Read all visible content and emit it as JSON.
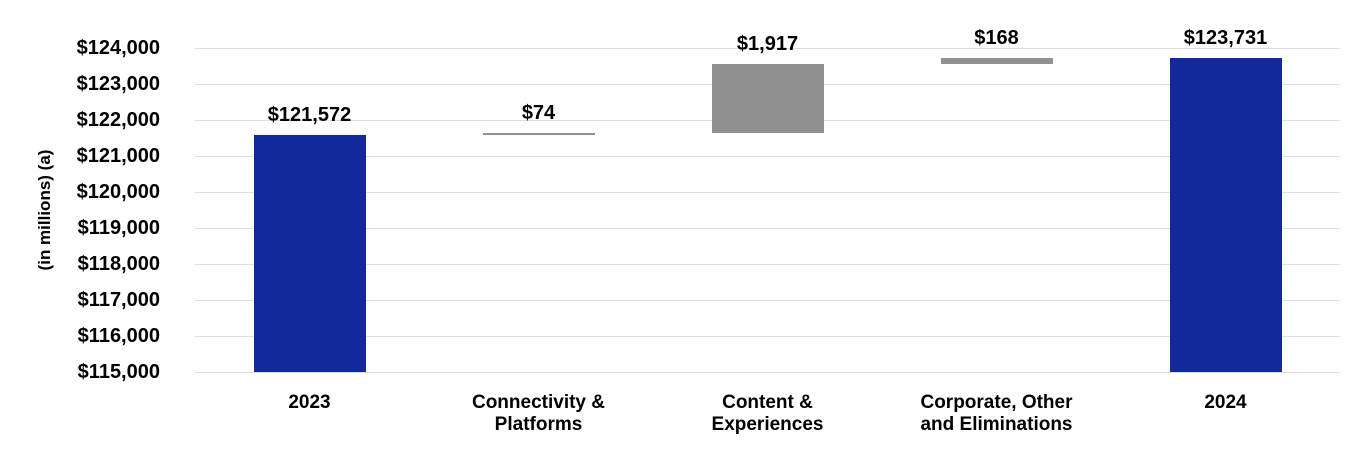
{
  "chart_data": {
    "type": "bar",
    "subtype": "waterfall",
    "title": "",
    "ylabel": "(in millions) (a)",
    "xlabel": "",
    "ylim": [
      115000,
      124000
    ],
    "ytick_step": 1000,
    "grid": true,
    "legend": false,
    "ytick_labels": [
      "$115,000",
      "$116,000",
      "$117,000",
      "$118,000",
      "$119,000",
      "$120,000",
      "$121,000",
      "$122,000",
      "$123,000",
      "$124,000"
    ],
    "categories": [
      [
        "2023"
      ],
      [
        "Connectivity &",
        "Platforms"
      ],
      [
        "Content &",
        "Experiences"
      ],
      [
        "Corporate, Other",
        "and Eliminations"
      ],
      [
        "2024"
      ]
    ],
    "bars": [
      {
        "name": "bar-2023",
        "label": "$121,572",
        "start": 115000,
        "end": 121572,
        "value": 121572,
        "color": "primary"
      },
      {
        "name": "bar-connectivity-and-platforms",
        "label": "$74",
        "start": 121572,
        "end": 121646,
        "value": 74,
        "color": "secondary"
      },
      {
        "name": "bar-content-and-experiences",
        "label": "$1,917",
        "start": 121646,
        "end": 123563,
        "value": 1917,
        "color": "secondary"
      },
      {
        "name": "bar-corporate-other-and-eliminations",
        "label": "$168",
        "start": 123563,
        "end": 123731,
        "value": 168,
        "color": "secondary"
      },
      {
        "name": "bar-2024",
        "label": "$123,731",
        "start": 115000,
        "end": 123731,
        "value": 123731,
        "color": "primary"
      }
    ],
    "colors": {
      "primary": "#12299B",
      "secondary": "#919191",
      "gridline": "#DFDFDF",
      "text": "#000000",
      "background": "#FFFFFF"
    }
  }
}
